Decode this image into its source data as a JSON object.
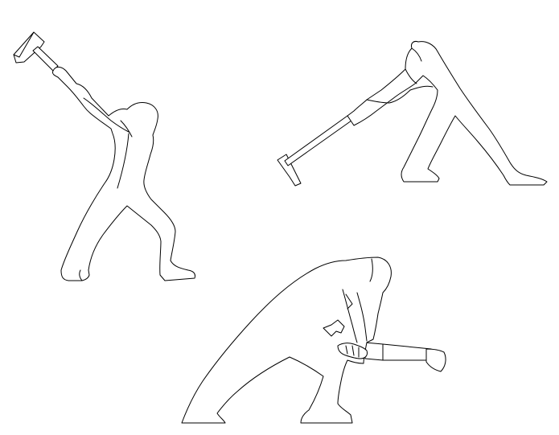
{
  "colors": {
    "background": "#ffffff",
    "outline": "#000000",
    "fill": "#ffffff"
  },
  "figures": [
    {
      "subject": "man-swinging-sledgehammer-overhead"
    },
    {
      "subject": "man-dragging-sledgehammer"
    },
    {
      "subject": "man-crouching-with-mallet"
    }
  ]
}
